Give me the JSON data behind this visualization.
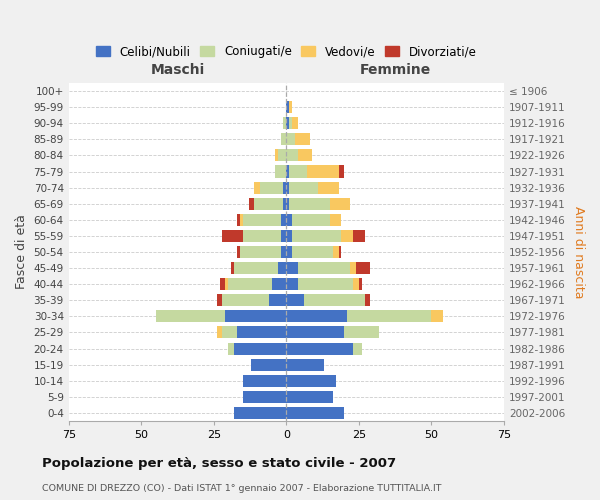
{
  "age_groups": [
    "100+",
    "95-99",
    "90-94",
    "85-89",
    "80-84",
    "75-79",
    "70-74",
    "65-69",
    "60-64",
    "55-59",
    "50-54",
    "45-49",
    "40-44",
    "35-39",
    "30-34",
    "25-29",
    "20-24",
    "15-19",
    "10-14",
    "5-9",
    "0-4"
  ],
  "birth_years": [
    "≤ 1906",
    "1907-1911",
    "1912-1916",
    "1917-1921",
    "1922-1926",
    "1927-1931",
    "1932-1936",
    "1937-1941",
    "1942-1946",
    "1947-1951",
    "1952-1956",
    "1957-1961",
    "1962-1966",
    "1967-1971",
    "1972-1976",
    "1977-1981",
    "1982-1986",
    "1987-1991",
    "1992-1996",
    "1997-2001",
    "2002-2006"
  ],
  "males": {
    "celibi": [
      0,
      0,
      0,
      0,
      0,
      0,
      1,
      1,
      2,
      2,
      2,
      3,
      5,
      6,
      21,
      17,
      18,
      12,
      15,
      15,
      18
    ],
    "coniugati": [
      0,
      0,
      1,
      2,
      3,
      4,
      8,
      10,
      13,
      13,
      14,
      15,
      15,
      16,
      24,
      5,
      2,
      0,
      0,
      0,
      0
    ],
    "vedovi": [
      0,
      0,
      0,
      0,
      1,
      0,
      2,
      0,
      1,
      0,
      0,
      0,
      1,
      0,
      0,
      2,
      0,
      0,
      0,
      0,
      0
    ],
    "divorziati": [
      0,
      0,
      0,
      0,
      0,
      0,
      0,
      2,
      1,
      7,
      1,
      1,
      2,
      2,
      0,
      0,
      0,
      0,
      0,
      0,
      0
    ]
  },
  "females": {
    "nubili": [
      0,
      1,
      1,
      0,
      0,
      1,
      1,
      1,
      2,
      2,
      2,
      4,
      4,
      6,
      21,
      20,
      23,
      13,
      17,
      16,
      20
    ],
    "coniugate": [
      0,
      0,
      1,
      3,
      4,
      6,
      10,
      14,
      13,
      17,
      14,
      18,
      19,
      21,
      29,
      12,
      3,
      0,
      0,
      0,
      0
    ],
    "vedove": [
      0,
      1,
      2,
      5,
      5,
      11,
      7,
      7,
      4,
      4,
      2,
      2,
      2,
      0,
      4,
      0,
      0,
      0,
      0,
      0,
      0
    ],
    "divorziate": [
      0,
      0,
      0,
      0,
      0,
      2,
      0,
      0,
      0,
      4,
      1,
      5,
      1,
      2,
      0,
      0,
      0,
      0,
      0,
      0,
      0
    ]
  },
  "colors": {
    "celibi": "#4472c4",
    "coniugati": "#c5d9a0",
    "vedovi": "#f9c860",
    "divorziati": "#c0392b"
  },
  "title": "Popolazione per età, sesso e stato civile - 2007",
  "subtitle": "COMUNE DI DREZZO (CO) - Dati ISTAT 1° gennaio 2007 - Elaborazione TUTTITALIA.IT",
  "ylabel_left": "Fasce di età",
  "ylabel_right": "Anni di nascita",
  "xlabel_left": "Maschi",
  "xlabel_right": "Femmine",
  "xlim": 75,
  "legend_labels": [
    "Celibi/Nubili",
    "Coniugati/e",
    "Vedovi/e",
    "Divorziati/e"
  ],
  "bg_color": "#f0f0f0",
  "plot_bg": "#ffffff"
}
